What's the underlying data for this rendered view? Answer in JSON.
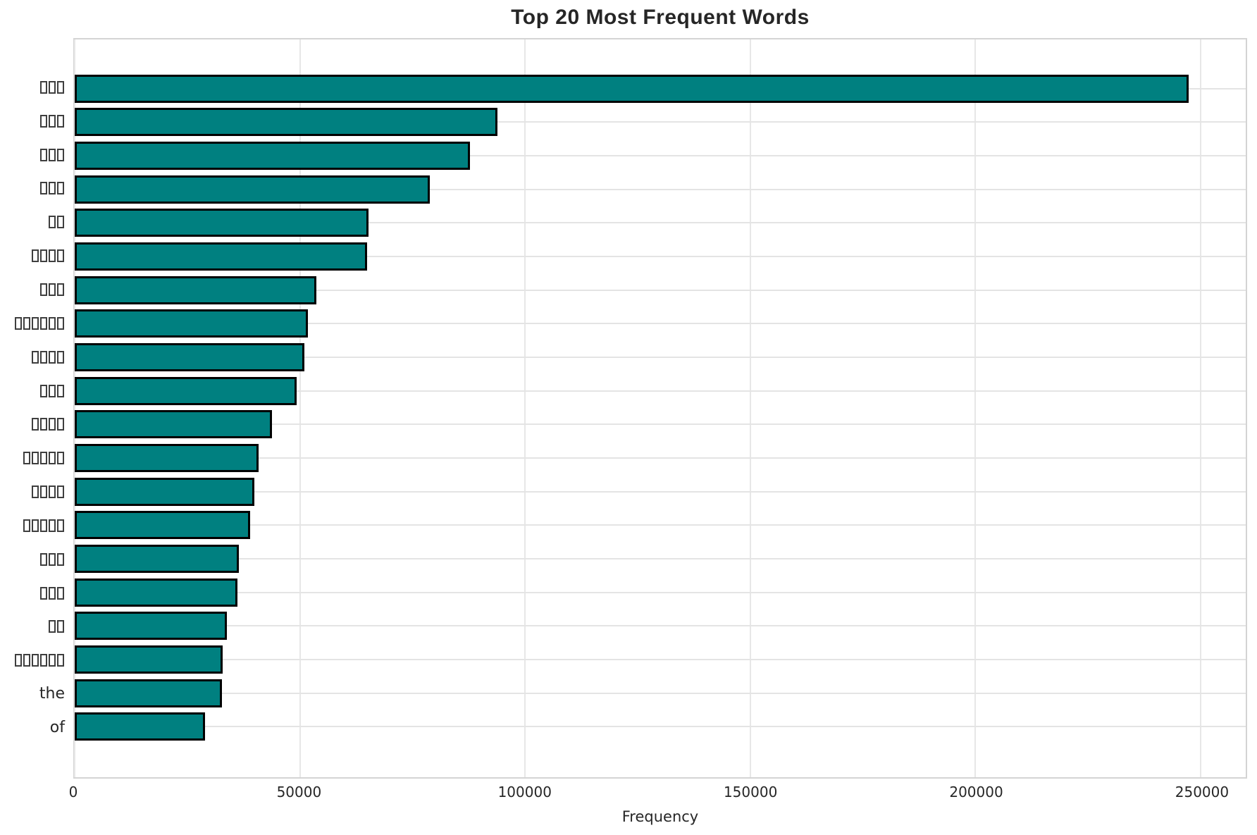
{
  "chart_data": {
    "type": "bar",
    "orientation": "horizontal",
    "title": "Top 20 Most Frequent Words",
    "xlabel": "Frequency",
    "ylabel": "",
    "categories": [
      "□□□",
      "□□□",
      "□□□",
      "□□□",
      "□□",
      "□□□□",
      "□□□",
      "□□□□□□",
      "□□□□",
      "□□□",
      "□□□□",
      "□□□□□",
      "□□□□",
      "□□□□□",
      "□□□",
      "□□□",
      "□□",
      "□□□□□□",
      "the",
      "of"
    ],
    "values": [
      247400,
      93900,
      87800,
      78800,
      65200,
      64900,
      53700,
      51800,
      51000,
      49300,
      43800,
      40900,
      39900,
      39000,
      36500,
      36200,
      33800,
      32900,
      32750,
      28900
    ],
    "xlim": [
      0,
      260000
    ],
    "xticks": [
      0,
      50000,
      100000,
      150000,
      200000,
      250000
    ],
    "xtick_labels": [
      "0",
      "50000",
      "100000",
      "150000",
      "200000",
      "250000"
    ],
    "grid": true,
    "legend": "none",
    "colors": {
      "bar_fill": "#008080",
      "bar_edge": "#000000",
      "gridline": "#e4e4e4",
      "spine": "#d4d4d4",
      "text": "#262626",
      "background": "#ffffff"
    }
  }
}
